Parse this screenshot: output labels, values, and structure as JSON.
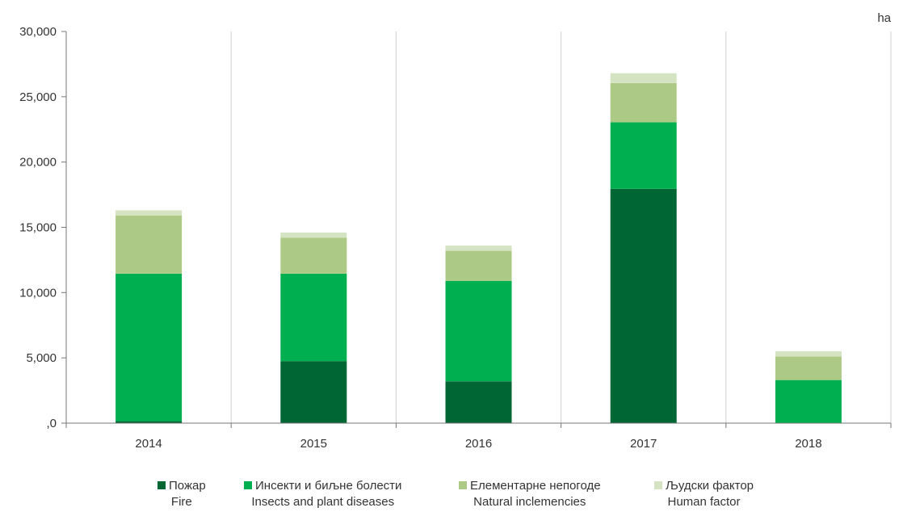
{
  "chart_data": {
    "type": "bar",
    "stacked": true,
    "unit": "ha",
    "categories": [
      "2014",
      "2015",
      "2016",
      "2017",
      "2018"
    ],
    "series": [
      {
        "name": "Пожар",
        "name_en": "Fire",
        "color": "#006633",
        "values": [
          150,
          4750,
          3200,
          17950,
          0
        ]
      },
      {
        "name": "Инсекти и биљне болести",
        "name_en": "Insects and plant diseases",
        "color": "#00b050",
        "values": [
          11300,
          6700,
          7700,
          5100,
          3300
        ]
      },
      {
        "name": "Елементарне непогоде",
        "name_en": "Natural inclemencies",
        "color": "#adc986",
        "values": [
          4450,
          2750,
          2300,
          3000,
          1800
        ]
      },
      {
        "name": "Људски фактор",
        "name_en": "Human factor",
        "color": "#d4e3c1",
        "values": [
          400,
          400,
          400,
          750,
          400
        ]
      }
    ],
    "ylim": [
      0,
      30000
    ],
    "yticks": [
      0,
      5000,
      10000,
      15000,
      20000,
      25000,
      30000
    ],
    "ytick_labels": [
      ",0",
      "5,000",
      "10,000",
      "15,000",
      "20,000",
      "25,000",
      "30,000"
    ],
    "grid": "vertical category separators",
    "legend_position": "bottom"
  }
}
